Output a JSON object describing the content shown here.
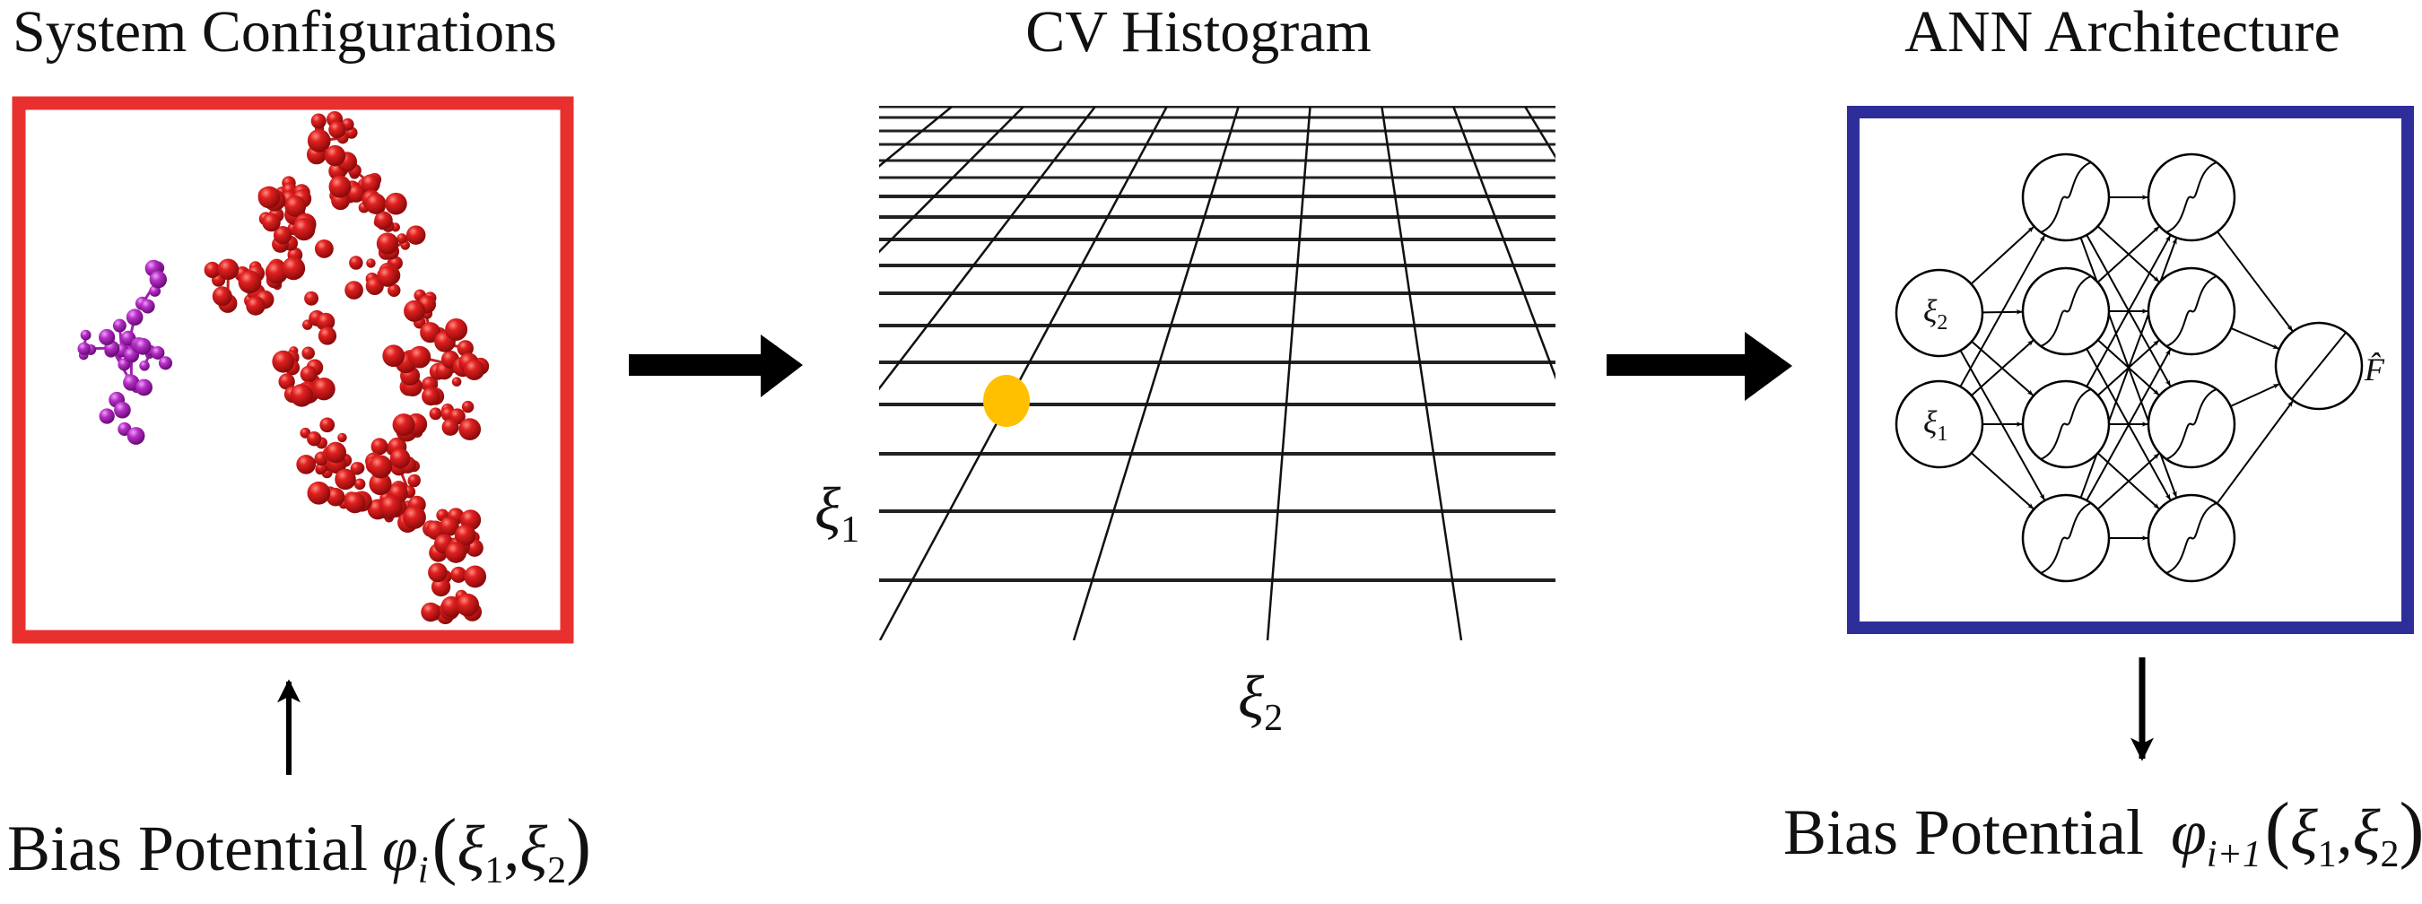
{
  "panels": {
    "configurations": {
      "title": "System Configurations",
      "border_color": "#E8312F"
    },
    "histogram": {
      "title": "CV Histogram",
      "x_axis_label": "ξ",
      "x_axis_sub": "2",
      "y_axis_label": "ξ",
      "y_axis_sub": "1",
      "point_color": "#FFC000"
    },
    "ann": {
      "title": "ANN Architecture",
      "border_color": "#2E2E9A",
      "inputs": [
        {
          "symbol": "ξ",
          "sub": "2"
        },
        {
          "symbol": "ξ",
          "sub": "1"
        }
      ],
      "hidden_layers": [
        4,
        4
      ],
      "hidden_activation": "sigmoid",
      "output_activation": "linear",
      "output_label": "F̂"
    }
  },
  "bias_input": {
    "label": "Bias Potential",
    "phi": "φ",
    "phi_sub": "i",
    "open": "(",
    "xi1": "ξ",
    "xi1_sub": "1",
    "comma": ",",
    "xi2": "ξ",
    "xi2_sub": "2",
    "close": ")"
  },
  "bias_output": {
    "label": "Bias Potential",
    "phi": "φ",
    "phi_sub": "i+1",
    "open": "(",
    "xi1": "ξ",
    "xi1_sub": "1",
    "comma": ",",
    "xi2": "ξ",
    "xi2_sub": "2",
    "close": ")"
  },
  "colors": {
    "red_atoms": "#D81E1E",
    "purple_atoms": "#A020B0",
    "arrows": "#000000"
  }
}
